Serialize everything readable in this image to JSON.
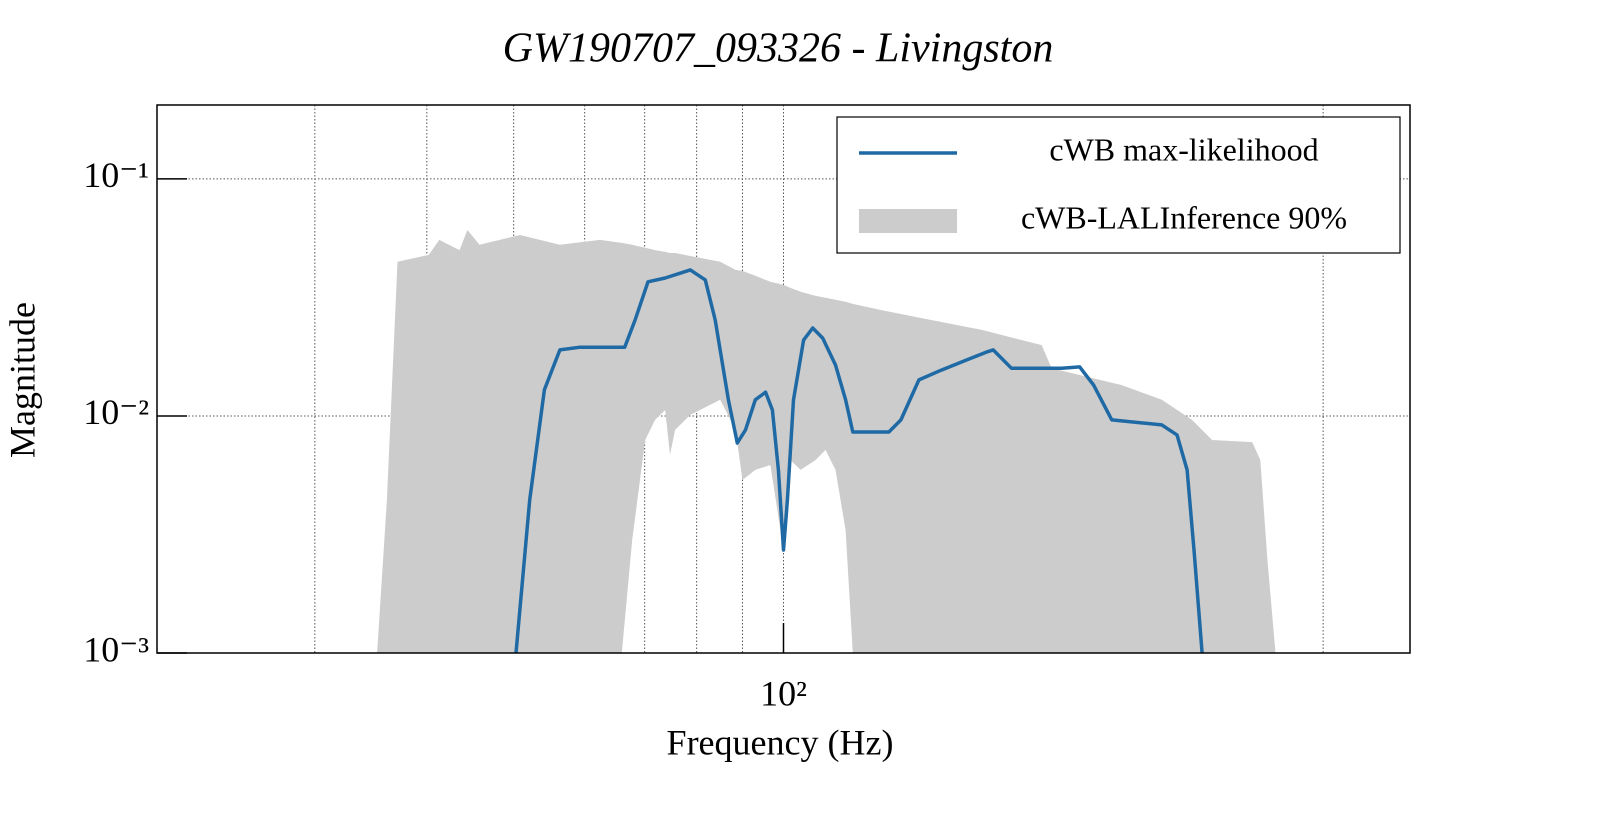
{
  "chart_data": {
    "type": "line",
    "title": "GW190707_093326 - Livingston",
    "xlabel": "Frequency (Hz)",
    "ylabel": "Magnitude",
    "xscale": "log",
    "yscale": "log",
    "xlim": [
      20,
      500
    ],
    "ylim": [
      0.001,
      0.205
    ],
    "xticks": [
      {
        "value": 100,
        "label": "10²"
      }
    ],
    "yticks": [
      {
        "value": 0.001,
        "label": "10⁻³"
      },
      {
        "value": 0.01,
        "label": "10⁻²"
      },
      {
        "value": 0.1,
        "label": "10⁻¹"
      }
    ],
    "xgrid": [
      30,
      40,
      50,
      60,
      70,
      80,
      90,
      100,
      400
    ],
    "grid": true,
    "legend": "upper right",
    "series": [
      {
        "name": "cWB max-likelihood",
        "color": "#1f6aa5",
        "x": [
          50.3,
          52.1,
          54.1,
          56.3,
          59.3,
          66.5,
          68.3,
          70.6,
          73.8,
          78.7,
          81.8,
          83.9,
          86.8,
          88.8,
          90.7,
          93.0,
          95.5,
          97.2,
          98.7,
          100,
          101.0,
          102.6,
          105.3,
          107.8,
          110.6,
          114.3,
          117.3,
          119.5,
          131.1,
          135.2,
          141.6,
          149.9,
          159.9,
          168.4,
          171.4,
          179.6,
          194.1,
          204.3,
          214.0,
          221.8,
          232.4,
          264.3,
          274.8,
          282.0,
          287.1,
          293.1
        ],
        "values": [
          0.001,
          0.00442,
          0.0129,
          0.019,
          0.0195,
          0.0195,
          0.0254,
          0.0368,
          0.0382,
          0.0413,
          0.0375,
          0.0254,
          0.0117,
          0.00769,
          0.00873,
          0.0117,
          0.0126,
          0.0106,
          0.00592,
          0.00272,
          0.00442,
          0.0117,
          0.0209,
          0.0235,
          0.0213,
          0.0164,
          0.0117,
          0.00856,
          0.00856,
          0.00962,
          0.0142,
          0.0156,
          0.0172,
          0.0186,
          0.019,
          0.0159,
          0.0159,
          0.0159,
          0.0161,
          0.0135,
          0.00962,
          0.00917,
          0.00832,
          0.00592,
          0.00272,
          0.001
        ]
      }
    ],
    "band": {
      "name": "cWB-LALInference 90%",
      "color": "#cccccc",
      "x": [
        35.2,
        36.1,
        37.1,
        40.2,
        41.3,
        43.5,
        44.4,
        45.8,
        50.8,
        56.3,
        62.4,
        66.0,
        67.8,
        70.1,
        71.9,
        73.8,
        74.7,
        75.7,
        78.7,
        85.0,
        88.4,
        90.0,
        93.0,
        96.7,
        100,
        101.8,
        104.5,
        108.6,
        111.4,
        114.3,
        117.3,
        119.5,
        128.4,
        146.1,
        166.2,
        194.1,
        199.1,
        238.4,
        264.3,
        285.6,
        300.7,
        333.4,
        340.4,
        346.7,
        353.9
      ],
      "upper": [
        0.001,
        0.00442,
        0.0447,
        0.0478,
        0.0553,
        0.0501,
        0.0609,
        0.0527,
        0.058,
        0.0527,
        0.0553,
        0.0537,
        0.0527,
        0.0512,
        0.0501,
        0.0492,
        0.0487,
        0.0487,
        0.0473,
        0.0447,
        0.0413,
        0.0409,
        0.039,
        0.0368,
        0.0357,
        0.0347,
        0.0334,
        0.0321,
        0.0315,
        0.0309,
        0.0303,
        0.0297,
        0.028,
        0.0254,
        0.0231,
        0.0199,
        0.0159,
        0.0135,
        0.0117,
        0.00962,
        0.00792,
        0.00776,
        0.00652,
        0.00245,
        0.001
      ],
      "lower": [
        0.001,
        0.001,
        0.001,
        0.001,
        0.001,
        0.001,
        0.001,
        0.001,
        0.001,
        0.001,
        0.001,
        0.001,
        0.003,
        0.00792,
        0.00962,
        0.0106,
        0.00685,
        0.00873,
        0.0101,
        0.0117,
        0.00873,
        0.00537,
        0.00592,
        0.00621,
        0.00272,
        0.00652,
        0.00592,
        0.00652,
        0.00719,
        0.00592,
        0.0033,
        0.001,
        0.001,
        0.001,
        0.001,
        0.001,
        0.001,
        0.001,
        0.001,
        0.001,
        0.001,
        0.001,
        0.001,
        0.001,
        0.001
      ]
    }
  }
}
